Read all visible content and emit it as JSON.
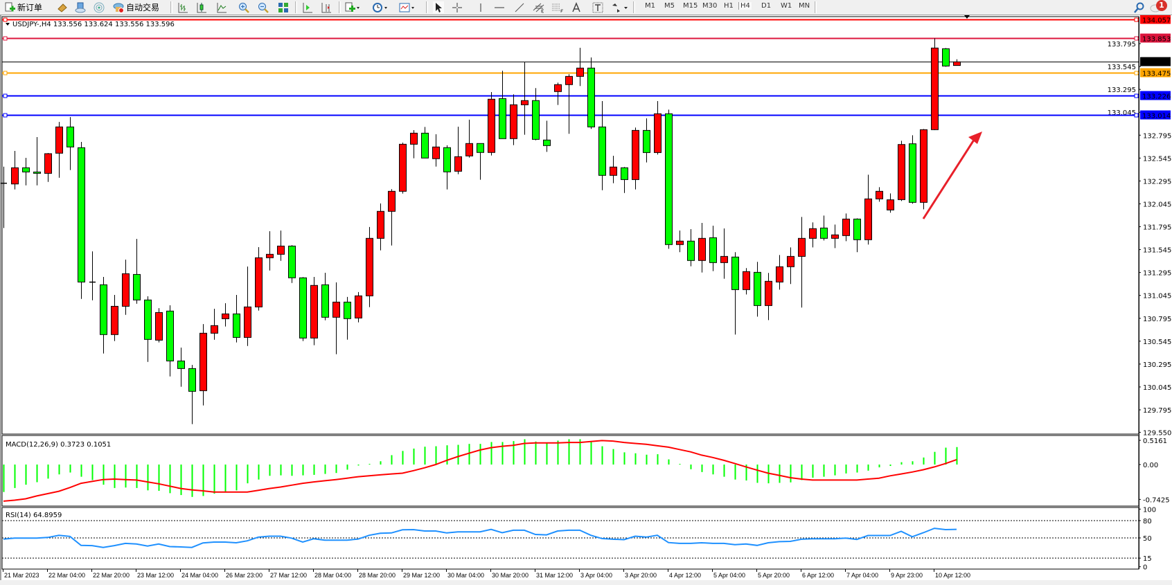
{
  "toolbar": {
    "new_order_label": "新订单",
    "auto_trading_label": "自动交易",
    "icons": [
      "new-order-icon",
      "market-watch-icon",
      "navigator-icon",
      "signals-icon",
      "auto-trading-icon",
      "bar-chart-icon",
      "candlestick-icon",
      "line-chart-icon",
      "zoom-in-icon",
      "zoom-out-icon",
      "tile-windows-icon",
      "auto-scroll-icon",
      "chart-shift-icon",
      "indicators-icon",
      "periods-icon",
      "templates-icon",
      "cursor-icon",
      "crosshair-icon",
      "vertical-line-icon",
      "horizontal-line-icon",
      "trendline-icon",
      "equidistant-channel-icon",
      "fibonacci-icon",
      "text-icon",
      "text-label-icon",
      "arrows-icon",
      "search-icon",
      "notifications-icon"
    ],
    "timeframes": [
      "M1",
      "M5",
      "M15",
      "M30",
      "H1",
      "H4",
      "D1",
      "W1",
      "MN"
    ],
    "active_timeframe": "H4",
    "notification_count": "1"
  },
  "chart": {
    "symbol_label": "USDJPY-,H4  133.556 133.624 133.556 133.596",
    "colors": {
      "bull": "#ff0000",
      "bear": "#00ff00",
      "macd_hist": "#00ff00",
      "signal": "#ff0000",
      "rsi": "#1e90ff",
      "arrow": "#e8202a"
    },
    "levels": [
      {
        "price": "134.057",
        "color": "#ff0000"
      },
      {
        "price": "133.853",
        "color": "#dc143c"
      },
      {
        "price": "133.596",
        "color": "#000000",
        "current": true
      },
      {
        "price": "133.475",
        "color": "#ffa500"
      },
      {
        "price": "133.226",
        "color": "#0000ff"
      },
      {
        "price": "133.014",
        "color": "#0000ff"
      }
    ],
    "price_ticks": [
      "133.795",
      "133.545",
      "133.295",
      "133.045",
      "132.795",
      "132.545",
      "132.295",
      "132.045",
      "131.795",
      "131.545",
      "131.295",
      "131.045",
      "130.795",
      "130.545",
      "130.295",
      "130.045",
      "129.795",
      "129.550"
    ],
    "time_labels": [
      "21 Mar 2023",
      "22 Mar 04:00",
      "22 Mar 20:00",
      "23 Mar 12:00",
      "24 Mar 04:00",
      "26 Mar 23:00",
      "27 Mar 12:00",
      "28 Mar 04:00",
      "28 Mar 20:00",
      "29 Mar 12:00",
      "30 Mar 04:00",
      "30 Mar 20:00",
      "31 Mar 12:00",
      "3 Apr 04:00",
      "3 Apr 20:00",
      "4 Apr 12:00",
      "5 Apr 04:00",
      "5 Apr 20:00",
      "6 Apr 12:00",
      "7 Apr 04:00",
      "9 Apr 23:00",
      "10 Apr 12:00"
    ],
    "macd": {
      "label": "MACD(12,26,9) 0.3723 0.1051",
      "ticks": [
        "0.5161",
        "0.00",
        "-0.7425"
      ]
    },
    "rsi": {
      "label": "RSI(14) 64.8959",
      "ticks": [
        "100",
        "80",
        "50",
        "15",
        "0"
      ],
      "levels": [
        80,
        50,
        15
      ]
    }
  },
  "chart_data": {
    "type": "candlestick",
    "timeframe": "H4",
    "ohlc": [
      [
        132.27,
        132.451,
        131.781,
        132.262
      ],
      [
        132.262,
        132.623,
        132.202,
        132.439
      ],
      [
        132.439,
        132.547,
        132.247,
        132.393
      ],
      [
        132.393,
        132.774,
        132.247,
        132.378
      ],
      [
        132.378,
        132.6,
        132.285,
        132.593
      ],
      [
        132.598,
        132.94,
        132.33,
        132.885
      ],
      [
        132.885,
        132.993,
        132.414,
        132.666
      ],
      [
        132.658,
        132.721,
        131.007,
        131.191
      ],
      [
        131.19,
        131.526,
        130.992,
        131.19
      ],
      [
        131.161,
        131.247,
        130.41,
        130.617
      ],
      [
        130.617,
        131.05,
        130.546,
        130.926
      ],
      [
        130.926,
        131.436,
        130.833,
        131.282
      ],
      [
        131.274,
        131.662,
        130.954,
        130.995
      ],
      [
        130.995,
        131.035,
        130.319,
        130.564
      ],
      [
        130.556,
        130.906,
        130.531,
        130.858
      ],
      [
        130.874,
        130.937,
        130.16,
        130.329
      ],
      [
        130.329,
        130.475,
        130.047,
        130.246
      ],
      [
        130.246,
        130.286,
        129.639,
        129.997
      ],
      [
        130.004,
        130.732,
        129.843,
        130.632
      ],
      [
        130.632,
        130.899,
        130.561,
        130.715
      ],
      [
        130.79,
        130.959,
        130.705,
        130.843
      ],
      [
        130.843,
        131.05,
        130.531,
        130.586
      ],
      [
        130.586,
        131.36,
        130.493,
        130.919
      ],
      [
        130.919,
        131.572,
        130.879,
        131.456
      ],
      [
        131.456,
        131.746,
        131.317,
        131.494
      ],
      [
        131.494,
        131.753,
        131.423,
        131.584
      ],
      [
        131.584,
        131.594,
        131.181,
        131.237
      ],
      [
        131.237,
        131.245,
        130.546,
        130.579
      ],
      [
        130.579,
        131.247,
        130.501,
        131.154
      ],
      [
        131.161,
        131.292,
        130.773,
        130.806
      ],
      [
        130.806,
        131.187,
        130.403,
        130.972
      ],
      [
        130.972,
        131.028,
        130.562,
        130.791
      ],
      [
        130.798,
        131.081,
        130.751,
        131.04
      ],
      [
        131.04,
        131.792,
        130.917,
        131.668
      ],
      [
        131.668,
        132.049,
        131.537,
        131.963
      ],
      [
        131.963,
        132.205,
        131.59,
        132.182
      ],
      [
        132.182,
        132.714,
        132.157,
        132.696
      ],
      [
        132.696,
        132.85,
        132.543,
        132.817
      ],
      [
        132.817,
        132.885,
        132.545,
        132.545
      ],
      [
        132.538,
        132.805,
        132.452,
        132.666
      ],
      [
        132.659,
        132.684,
        132.202,
        132.394
      ],
      [
        132.401,
        132.888,
        132.369,
        132.56
      ],
      [
        132.568,
        132.964,
        132.55,
        132.704
      ],
      [
        132.704,
        132.704,
        132.308,
        132.606
      ],
      [
        132.606,
        133.266,
        132.573,
        133.188
      ],
      [
        133.195,
        133.498,
        132.757,
        132.757
      ],
      [
        132.757,
        133.241,
        132.686,
        133.127
      ],
      [
        133.127,
        133.596,
        132.8,
        133.173
      ],
      [
        133.173,
        133.309,
        132.739,
        132.749
      ],
      [
        132.742,
        132.953,
        132.613,
        132.681
      ],
      [
        133.271,
        133.369,
        133.125,
        133.347
      ],
      [
        133.347,
        133.46,
        132.81,
        133.437
      ],
      [
        133.437,
        133.75,
        133.332,
        133.528
      ],
      [
        133.528,
        133.644,
        132.863,
        132.885
      ],
      [
        132.885,
        133.167,
        132.194,
        132.356
      ],
      [
        132.356,
        132.57,
        132.27,
        132.447
      ],
      [
        132.439,
        132.447,
        132.164,
        132.31
      ],
      [
        132.31,
        132.878,
        132.202,
        132.847
      ],
      [
        132.847,
        132.978,
        132.497,
        132.605
      ],
      [
        132.605,
        133.167,
        132.583,
        133.029
      ],
      [
        133.029,
        133.074,
        131.554,
        131.6
      ],
      [
        131.6,
        131.753,
        131.517,
        131.638
      ],
      [
        131.638,
        131.769,
        131.363,
        131.426
      ],
      [
        131.426,
        131.837,
        131.295,
        131.668
      ],
      [
        131.675,
        131.806,
        131.31,
        131.403
      ],
      [
        131.403,
        131.776,
        131.227,
        131.471
      ],
      [
        131.464,
        131.517,
        130.617,
        131.108
      ],
      [
        131.108,
        131.343,
        131.055,
        131.305
      ],
      [
        131.297,
        131.411,
        130.813,
        130.934
      ],
      [
        130.934,
        131.29,
        130.775,
        131.199
      ],
      [
        131.191,
        131.486,
        131.108,
        131.358
      ],
      [
        131.358,
        131.569,
        131.169,
        131.471
      ],
      [
        131.471,
        131.902,
        130.912,
        131.668
      ],
      [
        131.668,
        131.842,
        131.569,
        131.774
      ],
      [
        131.781,
        131.917,
        131.645,
        131.668
      ],
      [
        131.668,
        131.819,
        131.562,
        131.706
      ],
      [
        131.698,
        131.94,
        131.637,
        131.879
      ],
      [
        131.879,
        131.887,
        131.517,
        131.653
      ],
      [
        131.653,
        132.363,
        131.6,
        132.099
      ],
      [
        132.099,
        132.227,
        132.068,
        132.182
      ],
      [
        131.978,
        132.159,
        131.948,
        132.089
      ],
      [
        132.091,
        132.734,
        132.076,
        132.693
      ],
      [
        132.701,
        132.794,
        132.046,
        132.061
      ],
      [
        132.061,
        132.862,
        131.985,
        132.855
      ],
      [
        132.855,
        133.853,
        132.85,
        133.747
      ],
      [
        133.739,
        133.747,
        133.543,
        133.55
      ],
      [
        133.556,
        133.624,
        133.556,
        133.596
      ]
    ],
    "price_range": [
      129.55,
      134.1
    ],
    "macd_histogram": [
      -0.585,
      -0.5,
      -0.43,
      -0.376,
      -0.3,
      -0.21,
      -0.17,
      -0.26,
      -0.33,
      -0.43,
      -0.5,
      -0.49,
      -0.5,
      -0.55,
      -0.56,
      -0.61,
      -0.65,
      -0.69,
      -0.67,
      -0.62,
      -0.58,
      -0.55,
      -0.4,
      -0.32,
      -0.24,
      -0.23,
      -0.24,
      -0.23,
      -0.22,
      -0.2,
      -0.18,
      -0.11,
      -0.02,
      0.0,
      0.07,
      0.2,
      0.29,
      0.34,
      0.38,
      0.39,
      0.41,
      0.42,
      0.44,
      0.44,
      0.48,
      0.48,
      0.5,
      0.54,
      0.49,
      0.47,
      0.51,
      0.54,
      0.54,
      0.5,
      0.39,
      0.33,
      0.26,
      0.24,
      0.21,
      0.22,
      0.11,
      0.01,
      -0.1,
      -0.16,
      -0.21,
      -0.26,
      -0.32,
      -0.34,
      -0.39,
      -0.4,
      -0.39,
      -0.38,
      -0.33,
      -0.28,
      -0.26,
      -0.23,
      -0.19,
      -0.17,
      -0.13,
      -0.06,
      -0.03,
      0.05,
      0.07,
      0.15,
      0.27,
      0.36,
      0.3723
    ],
    "macd_signal": [
      -0.78,
      -0.76,
      -0.73,
      -0.67,
      -0.62,
      -0.57,
      -0.49,
      -0.4,
      -0.36,
      -0.32,
      -0.31,
      -0.32,
      -0.33,
      -0.37,
      -0.41,
      -0.46,
      -0.51,
      -0.54,
      -0.56,
      -0.585,
      -0.585,
      -0.585,
      -0.585,
      -0.55,
      -0.51,
      -0.48,
      -0.44,
      -0.4,
      -0.37,
      -0.345,
      -0.32,
      -0.29,
      -0.26,
      -0.24,
      -0.22,
      -0.2,
      -0.185,
      -0.13,
      -0.07,
      0.0,
      0.09,
      0.17,
      0.24,
      0.31,
      0.36,
      0.39,
      0.41,
      0.45,
      0.46,
      0.46,
      0.46,
      0.47,
      0.47,
      0.49,
      0.51,
      0.5,
      0.47,
      0.45,
      0.43,
      0.4,
      0.37,
      0.32,
      0.27,
      0.2,
      0.15,
      0.09,
      0.02,
      -0.05,
      -0.12,
      -0.185,
      -0.23,
      -0.28,
      -0.31,
      -0.33,
      -0.33,
      -0.33,
      -0.33,
      -0.33,
      -0.31,
      -0.29,
      -0.24,
      -0.2,
      -0.16,
      -0.11,
      -0.05,
      0.02,
      0.1051
    ],
    "macd_range": [
      -0.7425,
      0.5161
    ],
    "rsi": [
      48,
      49.6,
      49.6,
      49.6,
      50.8,
      54.5,
      52.7,
      37,
      36.7,
      33.6,
      36.7,
      40.5,
      39.4,
      36,
      39.4,
      35,
      34.4,
      33.6,
      41.3,
      42.8,
      42.8,
      41.6,
      45,
      51.5,
      53,
      53,
      49.6,
      42.8,
      48.5,
      46.2,
      46.2,
      46.2,
      48,
      54.6,
      58,
      58.7,
      64,
      64.4,
      62,
      62,
      58.7,
      60.6,
      60.6,
      60.6,
      64.8,
      59,
      63.3,
      63.3,
      56,
      55.3,
      62,
      63.3,
      63.3,
      54.6,
      48.9,
      47.7,
      47,
      53,
      51.5,
      54.6,
      42,
      40.5,
      40.5,
      41.6,
      40.5,
      40.5,
      38.2,
      39.4,
      37,
      41.6,
      43.5,
      44,
      47.7,
      48.5,
      48.5,
      48.5,
      49.6,
      47.3,
      54.2,
      54.2,
      54.2,
      61.4,
      52,
      59,
      66.7,
      64.4,
      64.8959
    ],
    "rsi_range": [
      0,
      100
    ]
  }
}
